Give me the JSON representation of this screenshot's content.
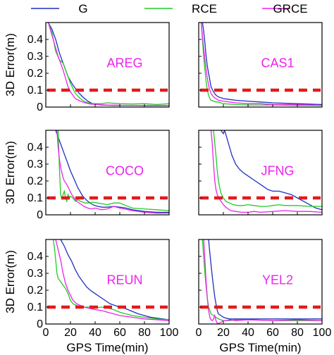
{
  "chart_data": {
    "type": "line",
    "xlabel": "GPS Time(min)",
    "ylabel": "3D Error(m)",
    "xlim": [
      0,
      100
    ],
    "ylim": [
      0,
      0.5
    ],
    "xticks": [
      0,
      20,
      40,
      60,
      80,
      100
    ],
    "yticks": [
      0,
      0.1,
      0.2,
      0.3,
      0.4
    ],
    "xtick_labels": [
      "0",
      "20",
      "40",
      "60",
      "80",
      "100"
    ],
    "ytick_labels": [
      "0",
      "0.1",
      "0.2",
      "0.3",
      "0.4"
    ],
    "reference_line": {
      "y": 0.1,
      "color": "#e31a1c",
      "style": "dashed"
    },
    "legend": {
      "placement": "top",
      "entries": [
        {
          "name": "G",
          "color": "#1f2fbf"
        },
        {
          "name": "RCE",
          "color": "#22cc22"
        },
        {
          "name": "GRCE",
          "color": "#ee22ee"
        }
      ]
    },
    "label_color": "#ee22ee",
    "panels": [
      {
        "station": "AREG",
        "series": [
          {
            "name": "G",
            "x": [
              2,
              5,
              8,
              11,
              13,
              15,
              18,
              22,
              26,
              30,
              34,
              38,
              45,
              55,
              70,
              85,
              100
            ],
            "y": [
              0.5,
              0.46,
              0.4,
              0.32,
              0.28,
              0.24,
              0.18,
              0.13,
              0.09,
              0.06,
              0.035,
              0.02,
              0.012,
              0.01,
              0.01,
              0.009,
              0.009
            ]
          },
          {
            "name": "RCE",
            "x": [
              2,
              5,
              8,
              11,
              14,
              17,
              20,
              24,
              28,
              32,
              36,
              40,
              45,
              50,
              60,
              70,
              80,
              90,
              100
            ],
            "y": [
              0.5,
              0.44,
              0.33,
              0.28,
              0.26,
              0.2,
              0.14,
              0.08,
              0.05,
              0.03,
              0.022,
              0.02,
              0.02,
              0.025,
              0.02,
              0.018,
              0.02,
              0.015,
              0.02
            ]
          },
          {
            "name": "GRCE",
            "x": [
              2,
              4,
              6,
              8,
              10,
              12,
              14,
              16,
              18,
              20,
              22,
              24,
              28,
              32,
              36,
              40,
              50,
              70,
              100
            ],
            "y": [
              0.5,
              0.45,
              0.4,
              0.35,
              0.3,
              0.26,
              0.22,
              0.17,
              0.12,
              0.09,
              0.07,
              0.05,
              0.035,
              0.025,
              0.018,
              0.015,
              0.012,
              0.01,
              0.01
            ]
          }
        ]
      },
      {
        "station": "CAS1",
        "series": [
          {
            "name": "G",
            "x": [
              3,
              4,
              5,
              6,
              7,
              8,
              9,
              10,
              12,
              14,
              16,
              20,
              25,
              30,
              40,
              50,
              60,
              80,
              100
            ],
            "y": [
              0.5,
              0.45,
              0.38,
              0.3,
              0.24,
              0.2,
              0.16,
              0.12,
              0.09,
              0.07,
              0.06,
              0.05,
              0.045,
              0.04,
              0.035,
              0.03,
              0.025,
              0.02,
              0.015
            ]
          },
          {
            "name": "RCE",
            "x": [
              2,
              3,
              4,
              5,
              6,
              7,
              8,
              9,
              10,
              12,
              14,
              16,
              20,
              30,
              40,
              60,
              80,
              100
            ],
            "y": [
              0.5,
              0.4,
              0.3,
              0.22,
              0.15,
              0.1,
              0.07,
              0.05,
              0.04,
              0.035,
              0.03,
              0.03,
              0.02,
              0.015,
              0.012,
              0.012,
              0.01,
              0.01
            ]
          },
          {
            "name": "GRCE",
            "x": [
              2,
              3,
              4,
              5,
              6,
              7,
              8,
              9,
              10,
              12,
              14,
              16,
              20,
              25,
              30,
              40,
              50,
              60,
              80,
              100
            ],
            "y": [
              0.5,
              0.42,
              0.35,
              0.28,
              0.22,
              0.17,
              0.13,
              0.1,
              0.08,
              0.06,
              0.05,
              0.04,
              0.035,
              0.03,
              0.025,
              0.02,
              0.02,
              0.015,
              0.015,
              0.01
            ]
          }
        ]
      },
      {
        "station": "COCO",
        "series": [
          {
            "name": "G",
            "x": [
              8,
              11,
              14,
              17,
              20,
              23,
              26,
              30,
              34,
              38,
              42,
              46,
              50,
              55,
              60,
              65,
              70,
              80,
              90,
              100
            ],
            "y": [
              0.5,
              0.44,
              0.38,
              0.32,
              0.26,
              0.21,
              0.16,
              0.11,
              0.08,
              0.06,
              0.05,
              0.045,
              0.045,
              0.05,
              0.045,
              0.04,
              0.03,
              0.02,
              0.015,
              0.015
            ]
          },
          {
            "name": "RCE",
            "x": [
              10,
              11,
              12,
              13,
              14,
              15,
              16,
              17,
              18,
              19,
              20,
              22,
              24,
              26,
              28,
              30,
              32,
              35,
              38,
              42,
              46,
              50,
              55,
              60,
              65,
              70,
              80,
              90,
              100
            ],
            "y": [
              0.5,
              0.28,
              0.12,
              0.09,
              0.12,
              0.14,
              0.1,
              0.08,
              0.12,
              0.1,
              0.11,
              0.1,
              0.08,
              0.09,
              0.08,
              0.075,
              0.07,
              0.07,
              0.075,
              0.07,
              0.065,
              0.06,
              0.07,
              0.07,
              0.055,
              0.04,
              0.035,
              0.03,
              0.025
            ]
          },
          {
            "name": "GRCE",
            "x": [
              9,
              10,
              11,
              12,
              13,
              14,
              15,
              17,
              19,
              21,
              23,
              25,
              28,
              31,
              34,
              37,
              40,
              45,
              50,
              55,
              60,
              70,
              80,
              90,
              100
            ],
            "y": [
              0.5,
              0.4,
              0.33,
              0.28,
              0.25,
              0.22,
              0.2,
              0.18,
              0.15,
              0.12,
              0.1,
              0.08,
              0.065,
              0.05,
              0.04,
              0.035,
              0.04,
              0.03,
              0.035,
              0.05,
              0.04,
              0.025,
              0.015,
              0.01,
              0.01
            ]
          }
        ]
      },
      {
        "station": "JFNG",
        "series": [
          {
            "name": "G",
            "x": [
              18,
              20,
              21,
              23,
              25,
              27,
              30,
              33,
              36,
              40,
              44,
              48,
              52,
              56,
              60,
              65,
              70,
              75,
              80,
              85,
              90,
              95,
              100
            ],
            "y": [
              0.5,
              0.48,
              0.5,
              0.45,
              0.4,
              0.35,
              0.3,
              0.27,
              0.25,
              0.23,
              0.21,
              0.19,
              0.17,
              0.15,
              0.14,
              0.14,
              0.13,
              0.12,
              0.1,
              0.08,
              0.06,
              0.04,
              0.03
            ]
          },
          {
            "name": "RCE",
            "x": [
              12,
              14,
              15,
              16,
              17,
              18,
              20,
              22,
              25,
              28,
              32,
              36,
              40,
              45,
              50,
              55,
              60,
              65,
              70,
              80,
              90,
              100
            ],
            "y": [
              0.5,
              0.35,
              0.26,
              0.2,
              0.16,
              0.13,
              0.1,
              0.08,
              0.07,
              0.06,
              0.055,
              0.055,
              0.06,
              0.055,
              0.05,
              0.05,
              0.055,
              0.06,
              0.055,
              0.055,
              0.05,
              0.05
            ]
          },
          {
            "name": "GRCE",
            "x": [
              10,
              11,
              12,
              13,
              14,
              15,
              16,
              18,
              20,
              22,
              24,
              26,
              30,
              35,
              40,
              45,
              50,
              60,
              70,
              80,
              90,
              100
            ],
            "y": [
              0.5,
              0.42,
              0.3,
              0.2,
              0.15,
              0.12,
              0.1,
              0.08,
              0.06,
              0.045,
              0.035,
              0.025,
              0.02,
              0.015,
              0.015,
              0.02,
              0.015,
              0.02,
              0.025,
              0.02,
              0.02,
              0.015
            ]
          }
        ]
      },
      {
        "station": "REUN",
        "series": [
          {
            "name": "G",
            "x": [
              12,
              15,
              18,
              21,
              24,
              27,
              30,
              33,
              36,
              40,
              44,
              48,
              52,
              56,
              60,
              65,
              70,
              75,
              80,
              85,
              90,
              95,
              100
            ],
            "y": [
              0.5,
              0.46,
              0.41,
              0.37,
              0.32,
              0.28,
              0.25,
              0.22,
              0.2,
              0.18,
              0.16,
              0.14,
              0.12,
              0.11,
              0.1,
              0.09,
              0.075,
              0.06,
              0.05,
              0.04,
              0.035,
              0.03,
              0.025
            ]
          },
          {
            "name": "RCE",
            "x": [
              6,
              7,
              8,
              9,
              10,
              11,
              12,
              14,
              16,
              18,
              20,
              22,
              25,
              28,
              32,
              36,
              40,
              45,
              50,
              55,
              60,
              70,
              80,
              90,
              100
            ],
            "y": [
              0.5,
              0.45,
              0.38,
              0.3,
              0.27,
              0.26,
              0.25,
              0.23,
              0.21,
              0.18,
              0.14,
              0.12,
              0.11,
              0.1,
              0.1,
              0.1,
              0.095,
              0.1,
              0.095,
              0.085,
              0.07,
              0.05,
              0.04,
              0.03,
              0.025
            ]
          },
          {
            "name": "GRCE",
            "x": [
              8,
              10,
              12,
              14,
              16,
              18,
              20,
              22,
              25,
              28,
              31,
              34,
              37,
              40,
              45,
              50,
              55,
              60,
              70,
              80,
              90,
              100
            ],
            "y": [
              0.5,
              0.44,
              0.38,
              0.3,
              0.24,
              0.2,
              0.17,
              0.14,
              0.12,
              0.11,
              0.1,
              0.095,
              0.09,
              0.085,
              0.08,
              0.07,
              0.06,
              0.05,
              0.04,
              0.03,
              0.025,
              0.02
            ]
          }
        ]
      },
      {
        "station": "YEL2",
        "series": [
          {
            "name": "G",
            "x": [
              8,
              9,
              10,
              11,
              12,
              13,
              14,
              15,
              16,
              18,
              20,
              22,
              25,
              30,
              40,
              60,
              80,
              100
            ],
            "y": [
              0.5,
              0.42,
              0.35,
              0.28,
              0.22,
              0.16,
              0.12,
              0.08,
              0.06,
              0.05,
              0.04,
              0.035,
              0.03,
              0.03,
              0.03,
              0.03,
              0.03,
              0.03
            ]
          },
          {
            "name": "RCE",
            "x": [
              3,
              4,
              5,
              6,
              7,
              8,
              9,
              10,
              12,
              14,
              16,
              18,
              20,
              25,
              30,
              40,
              60,
              80,
              100
            ],
            "y": [
              0.5,
              0.4,
              0.3,
              0.22,
              0.15,
              0.1,
              0.08,
              0.06,
              0.05,
              0.04,
              0.03,
              0.025,
              0.02,
              0.02,
              0.025,
              0.025,
              0.02,
              0.02,
              0.02
            ]
          },
          {
            "name": "GRCE",
            "x": [
              4,
              5,
              6,
              7,
              8,
              9,
              10,
              11,
              12,
              13,
              14,
              15,
              16,
              18,
              20,
              22,
              25,
              30,
              40,
              60,
              80,
              100
            ],
            "y": [
              0.5,
              0.38,
              0.25,
              0.15,
              0.08,
              0.04,
              0.025,
              0.02,
              0.03,
              0.05,
              0.02,
              0.005,
              0.003,
              0.01,
              0.02,
              0.02,
              0.025,
              0.02,
              0.025,
              0.02,
              0.025,
              0.02
            ]
          }
        ]
      }
    ]
  }
}
